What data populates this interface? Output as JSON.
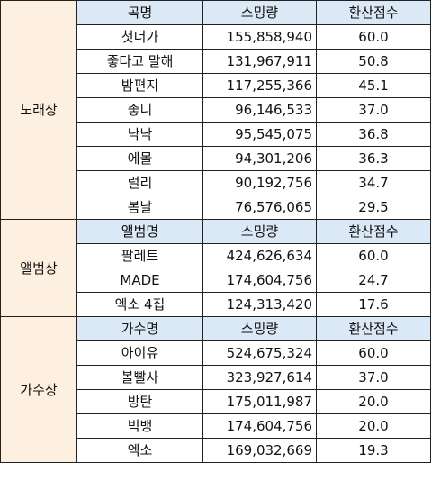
{
  "sections": [
    {
      "category": "노래상",
      "headers": [
        "곡명",
        "스밍량",
        "환산점수"
      ],
      "rows": [
        [
          "첫너가",
          "155,858,940",
          "60.0"
        ],
        [
          "좋다고 말해",
          "131,967,911",
          "50.8"
        ],
        [
          "밤편지",
          "117,255,366",
          "45.1"
        ],
        [
          "좋니",
          "96,146,533",
          "37.0"
        ],
        [
          "낙낙",
          "95,545,075",
          "36.8"
        ],
        [
          "에몰",
          "94,301,206",
          "36.3"
        ],
        [
          "럴리",
          "90,192,756",
          "34.7"
        ],
        [
          "봄날",
          "76,576,065",
          "29.5"
        ]
      ]
    },
    {
      "category": "앨범상",
      "headers": [
        "앨범명",
        "스밍량",
        "환산점수"
      ],
      "rows": [
        [
          "팔레트",
          "424,626,634",
          "60.0"
        ],
        [
          "MADE",
          "174,604,756",
          "24.7"
        ],
        [
          "엑소 4집",
          "124,313,420",
          "17.6"
        ]
      ]
    },
    {
      "category": "가수상",
      "headers": [
        "가수명",
        "스밍량",
        "환산점수"
      ],
      "rows": [
        [
          "아이유",
          "524,675,324",
          "60.0"
        ],
        [
          "볼빨사",
          "323,927,614",
          "37.0"
        ],
        [
          "방탄",
          "175,011,987",
          "20.0"
        ],
        [
          "빅뱅",
          "174,604,756",
          "20.0"
        ],
        [
          "엑소",
          "169,032,669",
          "19.3"
        ]
      ]
    }
  ]
}
